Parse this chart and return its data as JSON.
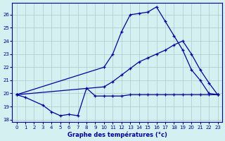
{
  "title": "Graphe des températures (°c)",
  "bg_color": "#d4f0f0",
  "grid_color": "#aacccc",
  "line_color": "#0000aa",
  "ylim": [
    17.8,
    26.9
  ],
  "xlim": [
    -0.5,
    23.5
  ],
  "yticks": [
    18,
    19,
    20,
    21,
    22,
    23,
    24,
    25,
    26
  ],
  "xticks": [
    0,
    1,
    2,
    3,
    4,
    5,
    6,
    7,
    8,
    9,
    10,
    11,
    12,
    13,
    14,
    15,
    16,
    17,
    18,
    19,
    20,
    21,
    22,
    23
  ],
  "top_curve_x": [
    0,
    10,
    11,
    12,
    13,
    14,
    15,
    16,
    17,
    18,
    19,
    20,
    21,
    22,
    23
  ],
  "top_curve_y": [
    19.9,
    22.0,
    23.0,
    24.7,
    26.0,
    26.1,
    26.2,
    26.6,
    25.5,
    24.4,
    23.3,
    21.8,
    21.0,
    20.0,
    19.9
  ],
  "mid_curve_x": [
    0,
    10,
    11,
    12,
    13,
    14,
    15,
    16,
    17,
    18,
    19,
    20,
    21,
    22,
    23
  ],
  "mid_curve_y": [
    19.9,
    20.5,
    20.9,
    21.4,
    21.9,
    22.4,
    22.7,
    23.0,
    23.3,
    23.7,
    24.0,
    23.0,
    21.8,
    20.8,
    19.9
  ],
  "bot_curve_x": [
    0,
    1,
    3,
    4,
    5,
    6,
    7,
    8,
    9,
    10,
    11,
    12,
    13,
    14,
    15,
    16,
    17,
    18,
    19,
    20,
    21,
    22,
    23
  ],
  "bot_curve_y": [
    19.9,
    19.7,
    19.1,
    18.6,
    18.3,
    18.4,
    18.3,
    20.4,
    19.8,
    19.8,
    19.8,
    19.8,
    19.9,
    19.9,
    19.9,
    19.9,
    19.9,
    19.9,
    19.9,
    19.9,
    19.9,
    19.9,
    19.9
  ]
}
